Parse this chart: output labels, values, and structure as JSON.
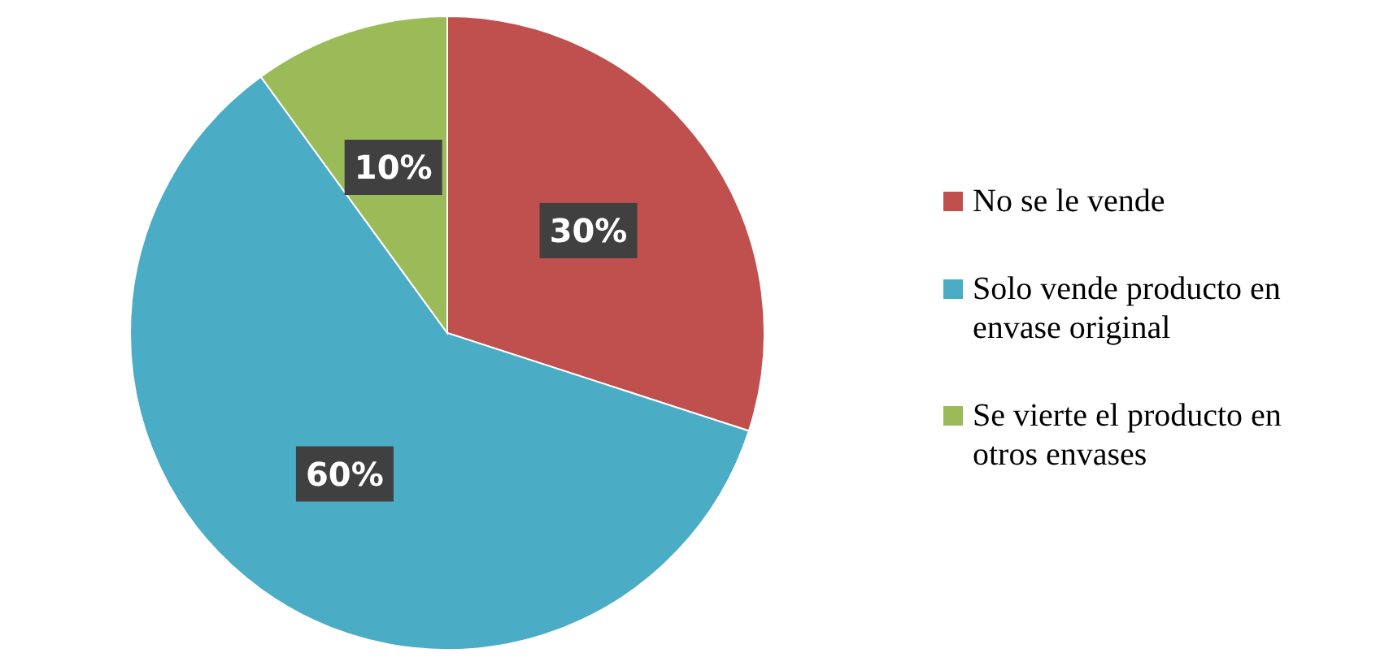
{
  "chart_data": {
    "type": "pie",
    "categories": [
      "No se le vende",
      "Solo vende producto en envase original",
      "Se vierte el producto en otros envases"
    ],
    "values": [
      30,
      60,
      10
    ],
    "colors": [
      "#c0504d",
      "#4bacc6",
      "#9bbb59"
    ],
    "value_labels": [
      "30%",
      "60%",
      "10%"
    ],
    "legend": "right"
  }
}
